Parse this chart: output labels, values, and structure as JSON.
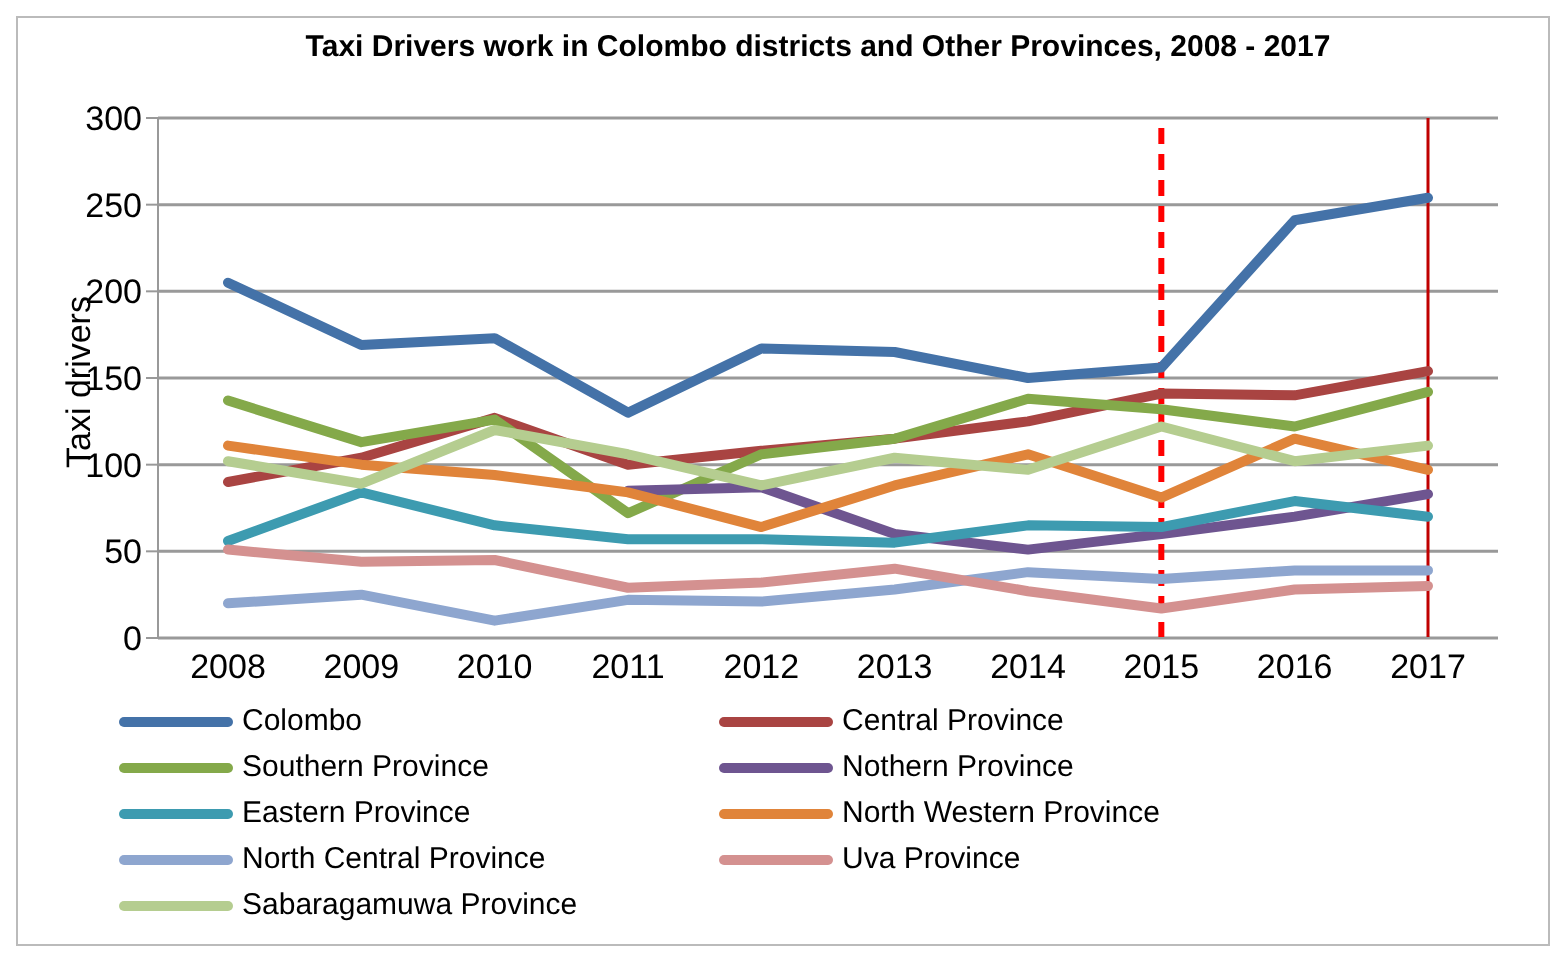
{
  "chart_data": {
    "type": "line",
    "title": "Taxi Drivers work in Colombo districts and Other Provinces, 2008 - 2017",
    "ylabel": "Taxi drivers",
    "categories": [
      "2008",
      "2009",
      "2010",
      "2011",
      "2012",
      "2013",
      "2014",
      "2015",
      "2016",
      "2017"
    ],
    "series": [
      {
        "name": "Colombo",
        "color": "#4472a8",
        "values": [
          205,
          169,
          173,
          130,
          167,
          165,
          150,
          156,
          241,
          254
        ]
      },
      {
        "name": "Central Province",
        "color": "#a94442",
        "values": [
          90,
          104,
          127,
          100,
          108,
          115,
          125,
          141,
          140,
          154
        ]
      },
      {
        "name": "Southern Province",
        "color": "#84a94a",
        "values": [
          137,
          113,
          126,
          72,
          106,
          115,
          138,
          132,
          122,
          142
        ]
      },
      {
        "name": "Nothern Province",
        "color": "#6e5590",
        "values": [
          null,
          null,
          null,
          85,
          87,
          60,
          51,
          60,
          70,
          83
        ]
      },
      {
        "name": "Eastern Province",
        "color": "#3d9bb0",
        "values": [
          56,
          84,
          65,
          57,
          57,
          55,
          65,
          64,
          79,
          70
        ]
      },
      {
        "name": "North Western Province",
        "color": "#e0843a",
        "values": [
          111,
          100,
          94,
          84,
          64,
          88,
          106,
          81,
          115,
          97
        ]
      },
      {
        "name": "North Central Province",
        "color": "#8ea6cf",
        "values": [
          20,
          25,
          10,
          22,
          21,
          28,
          38,
          34,
          39,
          39
        ]
      },
      {
        "name": "Uva Province",
        "color": "#d49190",
        "values": [
          51,
          44,
          45,
          29,
          32,
          40,
          27,
          17,
          28,
          30
        ]
      },
      {
        "name": "Sabaragamuwa Province",
        "color": "#b5cd90",
        "values": [
          102,
          89,
          120,
          106,
          88,
          104,
          97,
          122,
          102,
          111
        ]
      }
    ],
    "ylim": [
      0,
      300
    ],
    "yticks": [
      0,
      50,
      100,
      150,
      200,
      250,
      300
    ],
    "grid": "y",
    "legend": "bottom",
    "marker": "none",
    "line_style": "solid",
    "ref_lines": [
      {
        "axis": "x",
        "value": "2015",
        "color": "#ff0000",
        "line_style": "dashed"
      },
      {
        "axis": "x",
        "value": "2017",
        "color": "#c00000",
        "line_style": "solid"
      }
    ]
  }
}
